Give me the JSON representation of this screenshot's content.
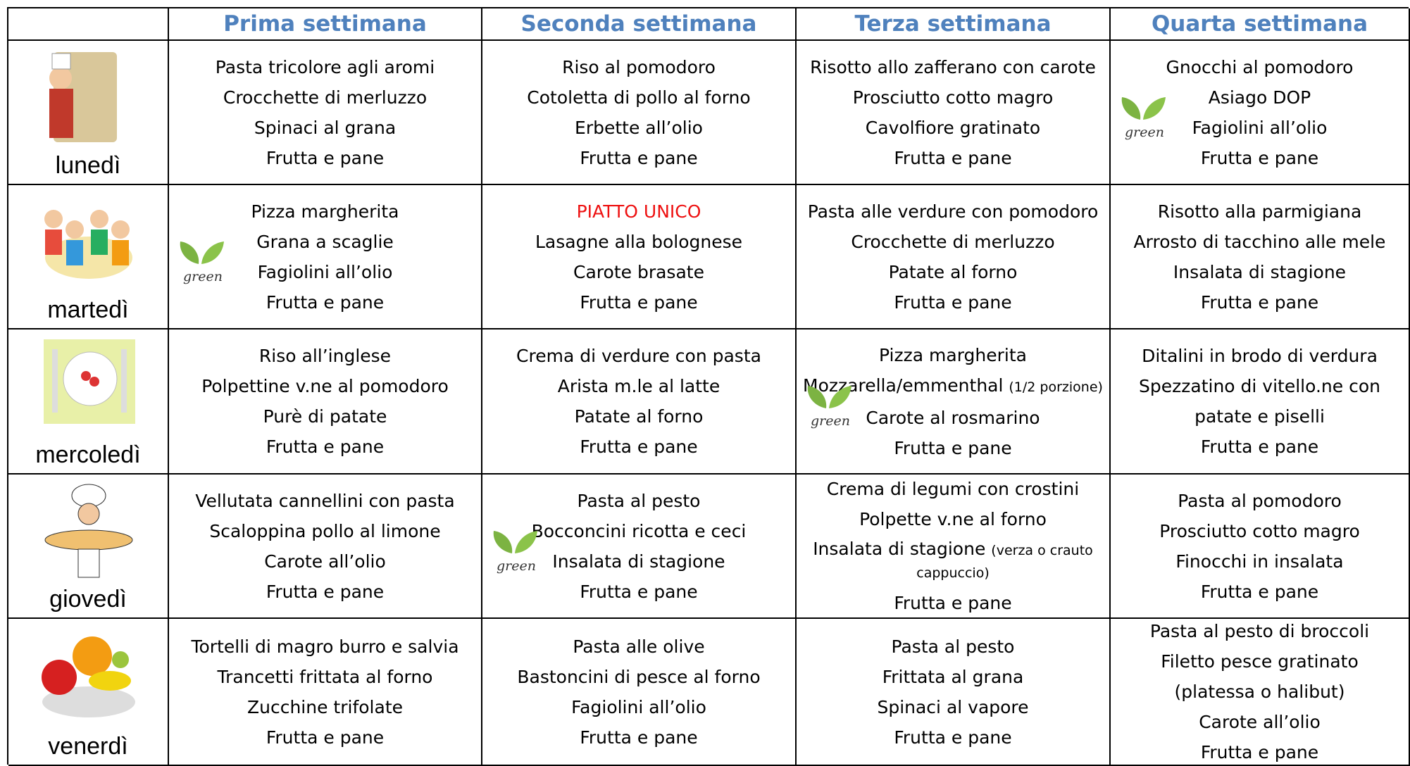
{
  "table": {
    "headers": [
      "Prima settimana",
      "Seconda settimana",
      "Terza settimana",
      "Quarta settimana"
    ],
    "badge_text": "green",
    "rows": [
      {
        "day": "lunedì",
        "cells": [
          {
            "lines": [
              "Pasta tricolore agli aromi",
              "Crocchette di merluzzo",
              "Spinaci al grana",
              "Frutta e pane"
            ]
          },
          {
            "lines": [
              "Riso al pomodoro",
              "Cotoletta di pollo al forno",
              "Erbette all’olio",
              "Frutta e pane"
            ]
          },
          {
            "lines": [
              "Risotto allo zafferano con carote",
              "Prosciutto cotto magro",
              "Cavolfiore gratinato",
              "Frutta e pane"
            ]
          },
          {
            "lines": [
              "Gnocchi al pomodoro",
              "Asiago DOP",
              "Fagiolini all’olio",
              "Frutta e pane"
            ],
            "green": true
          }
        ]
      },
      {
        "day": "martedì",
        "cells": [
          {
            "lines": [
              "Pizza margherita",
              "Grana a scaglie",
              "Fagiolini all’olio",
              "Frutta e pane"
            ],
            "green": true
          },
          {
            "lines": [
              {
                "text": "PIATTO UNICO",
                "color": "#ee1111"
              },
              "Lasagne alla bolognese",
              "Carote brasate",
              "Frutta e pane"
            ]
          },
          {
            "lines": [
              "Pasta alle verdure con pomodoro",
              "Crocchette di merluzzo",
              "Patate al forno",
              "Frutta e pane"
            ]
          },
          {
            "lines": [
              "Risotto alla parmigiana",
              "Arrosto di tacchino alle mele",
              "Insalata di stagione",
              "Frutta e pane"
            ]
          }
        ]
      },
      {
        "day": "mercoledì",
        "cells": [
          {
            "lines": [
              "Riso all’inglese",
              "Polpettine v.ne al pomodoro",
              "Purè di patate",
              "Frutta e pane"
            ]
          },
          {
            "lines": [
              "Crema di verdure con pasta",
              "Arista m.le al latte",
              "Patate al forno",
              "Frutta e pane"
            ]
          },
          {
            "lines": [
              "Pizza  margherita",
              {
                "text": "Mozzarella/emmenthal",
                "note": "(1/2 porzione)"
              },
              "Carote al rosmarino",
              "Frutta e pane"
            ],
            "green": true
          },
          {
            "lines": [
              "Ditalini  in brodo di verdura",
              "Spezzatino di vitello.ne con",
              "patate e piselli",
              "Frutta e pane"
            ]
          }
        ]
      },
      {
        "day": "giovedì",
        "cells": [
          {
            "lines": [
              "Vellutata cannellini con pasta",
              "Scaloppina  pollo al limone",
              "Carote all’olio",
              "Frutta e pane"
            ]
          },
          {
            "lines": [
              "Pasta al pesto",
              "Bocconcini ricotta e ceci",
              "Insalata di stagione",
              "Frutta e pane"
            ],
            "green": true
          },
          {
            "lines": [
              "Crema di legumi con crostini",
              "Polpette v.ne al forno",
              {
                "text": "Insalata di stagione",
                "note": "(verza o crauto cappuccio)"
              },
              "Frutta e pane"
            ]
          },
          {
            "lines": [
              "Pasta al pomodoro",
              "Prosciutto cotto magro",
              "Finocchi in insalata",
              "Frutta e pane"
            ]
          }
        ]
      },
      {
        "day": "venerdì",
        "cells": [
          {
            "lines": [
              "Tortelli di magro burro e salvia",
              "Trancetti frittata al forno",
              "Zucchine trifolate",
              "Frutta e pane"
            ]
          },
          {
            "lines": [
              "Pasta alle olive",
              "Bastoncini di pesce al forno",
              "Fagiolini all’olio",
              "Frutta e pane"
            ]
          },
          {
            "lines": [
              "Pasta al pesto",
              "Frittata al grana",
              "Spinaci al vapore",
              "Frutta e pane"
            ]
          },
          {
            "lines": [
              "Pasta al pesto di broccoli",
              "Filetto pesce gratinato",
              "(platessa o halibut)",
              "Carote all’olio",
              "Frutta e pane"
            ]
          }
        ]
      }
    ]
  }
}
